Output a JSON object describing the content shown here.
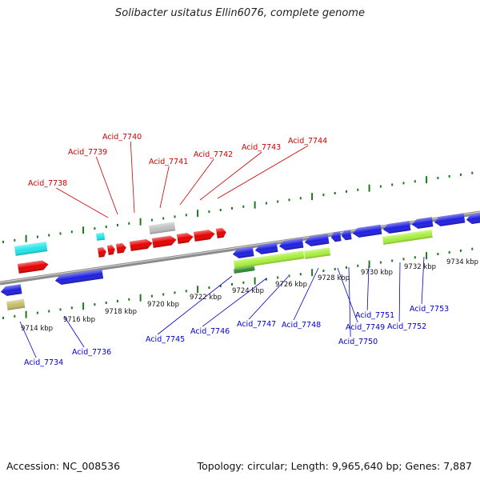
{
  "title": "Solibacter usitatus Ellin6076, complete genome",
  "footer": {
    "accession": "Accession: NC_008536",
    "summary": "Topology: circular; Length: 9,965,640 bp; Genes: 7,887"
  },
  "colors": {
    "backbone": "#8c8c8c",
    "tick": "#1a7a1a",
    "plus_label": "#cc0000",
    "minus_label": "#0000cc",
    "red": "#e60000",
    "blue": "#1f1fe0",
    "cyan": "#22e5ea",
    "lime": "#a8f03c",
    "gray": "#c0c0c0",
    "olive": "#c4bd6a",
    "darkgreen": "#2f8f2f"
  },
  "scale_labels": [
    "9714 kbp",
    "9716 kbp",
    "9718 kbp",
    "9720 kbp",
    "9722 kbp",
    "9724 kbp",
    "9726 kbp",
    "9728 kbp",
    "9730 kbp",
    "9732 kbp",
    "9734 kbp"
  ],
  "plus_labels": [
    "Acid_7738",
    "Acid_7739",
    "Acid_7740",
    "Acid_7741",
    "Acid_7742",
    "Acid_7743",
    "Acid_7744"
  ],
  "minus_labels": [
    "Acid_7734",
    "Acid_7736",
    "Acid_7745",
    "Acid_7746",
    "Acid_7747",
    "Acid_7748",
    "Acid_7749",
    "Acid_7750",
    "Acid_7751",
    "Acid_7752",
    "Acid_7753"
  ]
}
